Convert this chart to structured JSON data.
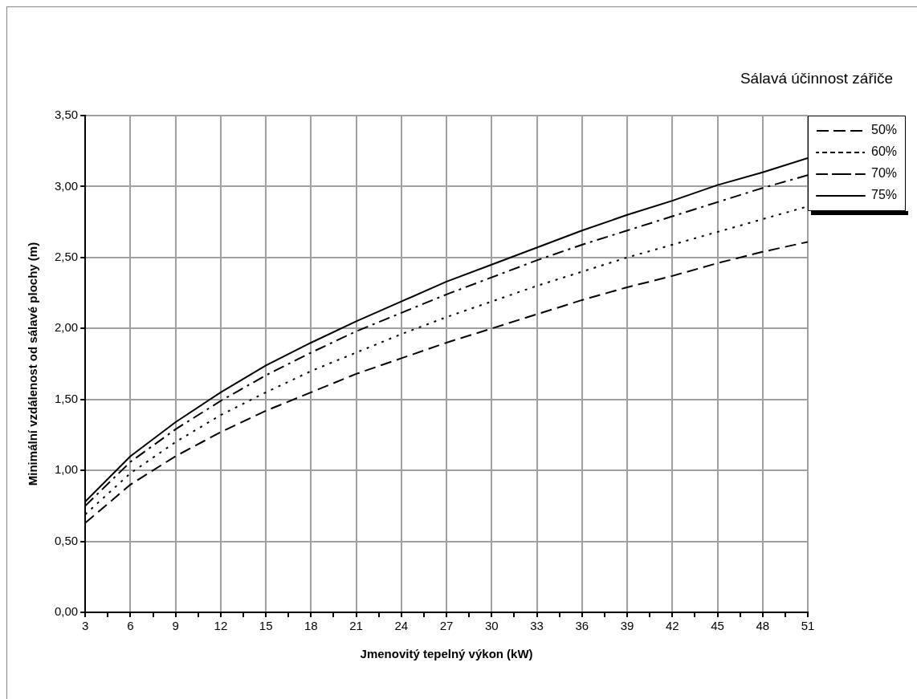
{
  "chart_data": {
    "type": "line",
    "xlabel": "Jmenovitý tepelný výkon (kW)",
    "ylabel": "Minimální vzdálenost od sálavé plochy (m)",
    "legend_title": "Sálavá účinnost zářiče",
    "legend": "right",
    "grid": true,
    "marker": "none",
    "x": [
      3,
      6,
      9,
      12,
      15,
      18,
      21,
      24,
      27,
      30,
      33,
      36,
      39,
      42,
      45,
      48,
      51
    ],
    "series": [
      {
        "name": "50%",
        "color": "#000000",
        "line_style": "dashed",
        "values": [
          0.63,
          0.9,
          1.1,
          1.27,
          1.42,
          1.55,
          1.68,
          1.79,
          1.9,
          2.0,
          2.1,
          2.2,
          2.29,
          2.37,
          2.46,
          2.54,
          2.61
        ]
      },
      {
        "name": "60%",
        "color": "#000000",
        "line_style": "dotted",
        "values": [
          0.69,
          0.98,
          1.2,
          1.39,
          1.55,
          1.7,
          1.83,
          1.96,
          2.08,
          2.19,
          2.3,
          2.4,
          2.5,
          2.59,
          2.68,
          2.77,
          2.86
        ]
      },
      {
        "name": "70%",
        "color": "#000000",
        "line_style": "dashdot",
        "values": [
          0.75,
          1.06,
          1.29,
          1.49,
          1.67,
          1.83,
          1.98,
          2.11,
          2.24,
          2.36,
          2.48,
          2.59,
          2.69,
          2.79,
          2.89,
          2.99,
          3.08
        ]
      },
      {
        "name": "75%",
        "color": "#000000",
        "line_style": "solid",
        "values": [
          0.78,
          1.1,
          1.34,
          1.55,
          1.74,
          1.9,
          2.05,
          2.19,
          2.33,
          2.45,
          2.57,
          2.69,
          2.8,
          2.9,
          3.01,
          3.1,
          3.2
        ]
      }
    ],
    "xlim": [
      3,
      51
    ],
    "xticks": [
      3,
      {
        "value": 4.5,
        "label": null
      },
      6,
      {
        "value": 7.5,
        "label": null
      },
      9,
      {
        "value": 10.5,
        "label": null
      },
      12,
      {
        "value": 13.5,
        "label": null
      },
      15,
      {
        "value": 16.5,
        "label": null
      },
      18,
      {
        "value": 19.5,
        "label": null
      },
      21,
      {
        "value": 22.5,
        "label": null
      },
      24,
      {
        "value": 25.5,
        "label": null
      },
      27,
      {
        "value": 28.5,
        "label": null
      },
      30,
      {
        "value": 31.5,
        "label": null
      },
      33,
      {
        "value": 34.5,
        "label": null
      },
      36,
      {
        "value": 37.5,
        "label": null
      },
      39,
      {
        "value": 40.5,
        "label": null
      },
      42,
      {
        "value": 43.5,
        "label": null
      },
      45,
      {
        "value": 46.5,
        "label": null
      },
      48,
      {
        "value": 49.5,
        "label": null
      },
      51
    ],
    "ylim": [
      0,
      3.5
    ],
    "yticks": [
      {
        "value": 0,
        "label": "0,00"
      },
      {
        "value": 0.5,
        "label": "0,50"
      },
      {
        "value": 1,
        "label": "1,00"
      },
      {
        "value": 1.5,
        "label": "1,50"
      },
      {
        "value": 2,
        "label": "2,00"
      },
      {
        "value": 2.5,
        "label": "2,50"
      },
      {
        "value": 3,
        "label": "3,00"
      },
      {
        "value": 3.5,
        "label": "3,50"
      }
    ]
  }
}
